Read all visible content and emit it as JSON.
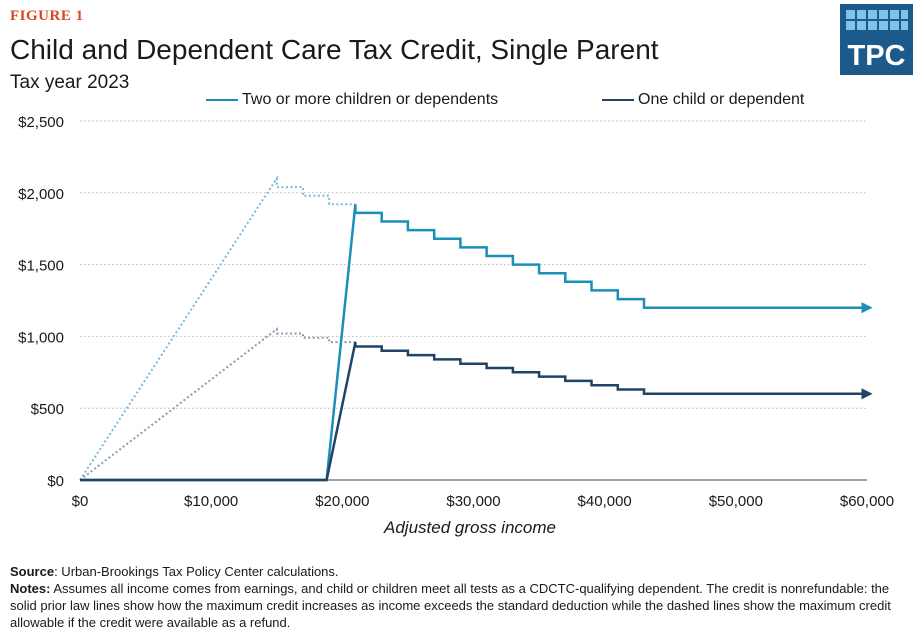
{
  "figure_label": "FIGURE 1",
  "logo_text": "TPC",
  "colors": {
    "accent": "#d9471f",
    "two_or_more": "#1a90b8",
    "one_child": "#1f4466",
    "refund_two": "#7ab8dc",
    "refund_one": "#8a9bb0",
    "grid": "#b9b9b9",
    "logo_bg": "#1b5a8a"
  },
  "source": {
    "label": "Source",
    "text": ": Urban-Brookings Tax Policy Center calculations."
  },
  "notes": {
    "label": "Notes:",
    "text": " Assumes all income comes from earnings, and child or children meet all tests as a CDCTC-qualifying dependent. The credit is nonrefundable: the solid prior law lines show how the maximum credit increases as income exceeds the standard deduction while the dashed lines show the maximum credit allowable if the credit were available as a refund."
  },
  "chart_data": {
    "type": "line",
    "title": "Child and Dependent Care Tax Credit, Single Parent",
    "subtitle": "Tax year 2023",
    "xlabel": "Adjusted gross income",
    "ylabel": "",
    "xlim": [
      0,
      60000
    ],
    "ylim": [
      0,
      2500
    ],
    "x_ticks": [
      0,
      10000,
      20000,
      30000,
      40000,
      50000,
      60000
    ],
    "x_tick_labels": [
      "$0",
      "$10,000",
      "$20,000",
      "$30,000",
      "$40,000",
      "$50,000",
      "$60,000"
    ],
    "y_ticks": [
      0,
      500,
      1000,
      1500,
      2000,
      2500
    ],
    "y_tick_labels": [
      "$0",
      "$500",
      "$1,000",
      "$1,500",
      "$2,000",
      "$2,500"
    ],
    "grid": "horizontal dotted",
    "legend_position": "top",
    "series": [
      {
        "name": "Two or more children or dependents",
        "style": "solid",
        "color": "#1a90b8",
        "arrow": true,
        "x": [
          0,
          18800,
          21000,
          21000,
          23000,
          23000,
          25000,
          25000,
          27000,
          27000,
          29000,
          29000,
          31000,
          31000,
          33000,
          33000,
          35000,
          35000,
          37000,
          37000,
          39000,
          39000,
          41000,
          41000,
          43000,
          43000,
          60000
        ],
        "y": [
          0,
          0,
          1920,
          1860,
          1860,
          1800,
          1800,
          1740,
          1740,
          1680,
          1680,
          1620,
          1620,
          1560,
          1560,
          1500,
          1500,
          1440,
          1440,
          1380,
          1380,
          1320,
          1320,
          1260,
          1260,
          1200,
          1200
        ]
      },
      {
        "name": "One child or dependent",
        "style": "solid",
        "color": "#1f4466",
        "arrow": true,
        "x": [
          0,
          18800,
          21000,
          21000,
          23000,
          23000,
          25000,
          25000,
          27000,
          27000,
          29000,
          29000,
          31000,
          31000,
          33000,
          33000,
          35000,
          35000,
          37000,
          37000,
          39000,
          39000,
          41000,
          41000,
          43000,
          43000,
          60000
        ],
        "y": [
          0,
          0,
          960,
          930,
          930,
          900,
          900,
          870,
          870,
          840,
          840,
          810,
          810,
          780,
          780,
          750,
          750,
          720,
          720,
          690,
          690,
          660,
          660,
          630,
          630,
          600,
          600
        ]
      },
      {
        "style": "dotted",
        "color": "#7ab8dc",
        "x": [
          0,
          15000,
          15000,
          17000,
          17000,
          19000,
          19000,
          21000
        ],
        "y": [
          0,
          2100,
          2040,
          2040,
          1980,
          1980,
          1920,
          1920
        ]
      },
      {
        "style": "dotted",
        "color": "#8a9bb0",
        "x": [
          0,
          15000,
          15000,
          17000,
          17000,
          19000,
          19000,
          21000
        ],
        "y": [
          0,
          1050,
          1020,
          1020,
          990,
          990,
          960,
          960
        ]
      }
    ]
  }
}
